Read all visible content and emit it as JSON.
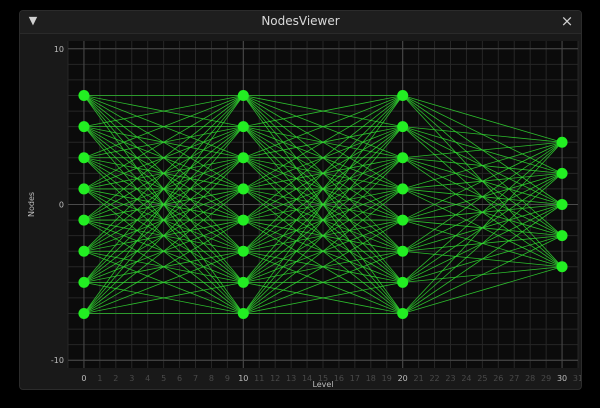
{
  "window": {
    "title": "NodesViewer",
    "collapse_icon": "▼",
    "close_icon": "×"
  },
  "chart_data": {
    "type": "scatter",
    "xlabel": "Level",
    "ylabel": "Nodes",
    "xlim": [
      -1,
      31
    ],
    "ylim": [
      -10.5,
      10.5
    ],
    "x_ticks": [
      0,
      1,
      2,
      3,
      4,
      5,
      6,
      7,
      8,
      9,
      10,
      11,
      12,
      13,
      14,
      15,
      16,
      17,
      18,
      19,
      20,
      21,
      22,
      23,
      24,
      25,
      26,
      27,
      28,
      29,
      30,
      31
    ],
    "y_major_ticks": [
      10,
      0,
      -10
    ],
    "grid": true,
    "node_color": "#22ee22",
    "edge_color": "#33dd33",
    "layers": [
      {
        "x": 0,
        "ys": [
          7,
          5,
          3,
          1,
          -1,
          -3,
          -5,
          -7
        ]
      },
      {
        "x": 10,
        "ys": [
          7,
          5,
          3,
          1,
          -1,
          -3,
          -5,
          -7
        ]
      },
      {
        "x": 20,
        "ys": [
          7,
          5,
          3,
          1,
          -1,
          -3,
          -5,
          -7
        ]
      },
      {
        "x": 30,
        "ys": [
          4,
          2,
          0,
          -2,
          -4
        ]
      }
    ],
    "edges": "fully-connected-between-adjacent-layers"
  }
}
